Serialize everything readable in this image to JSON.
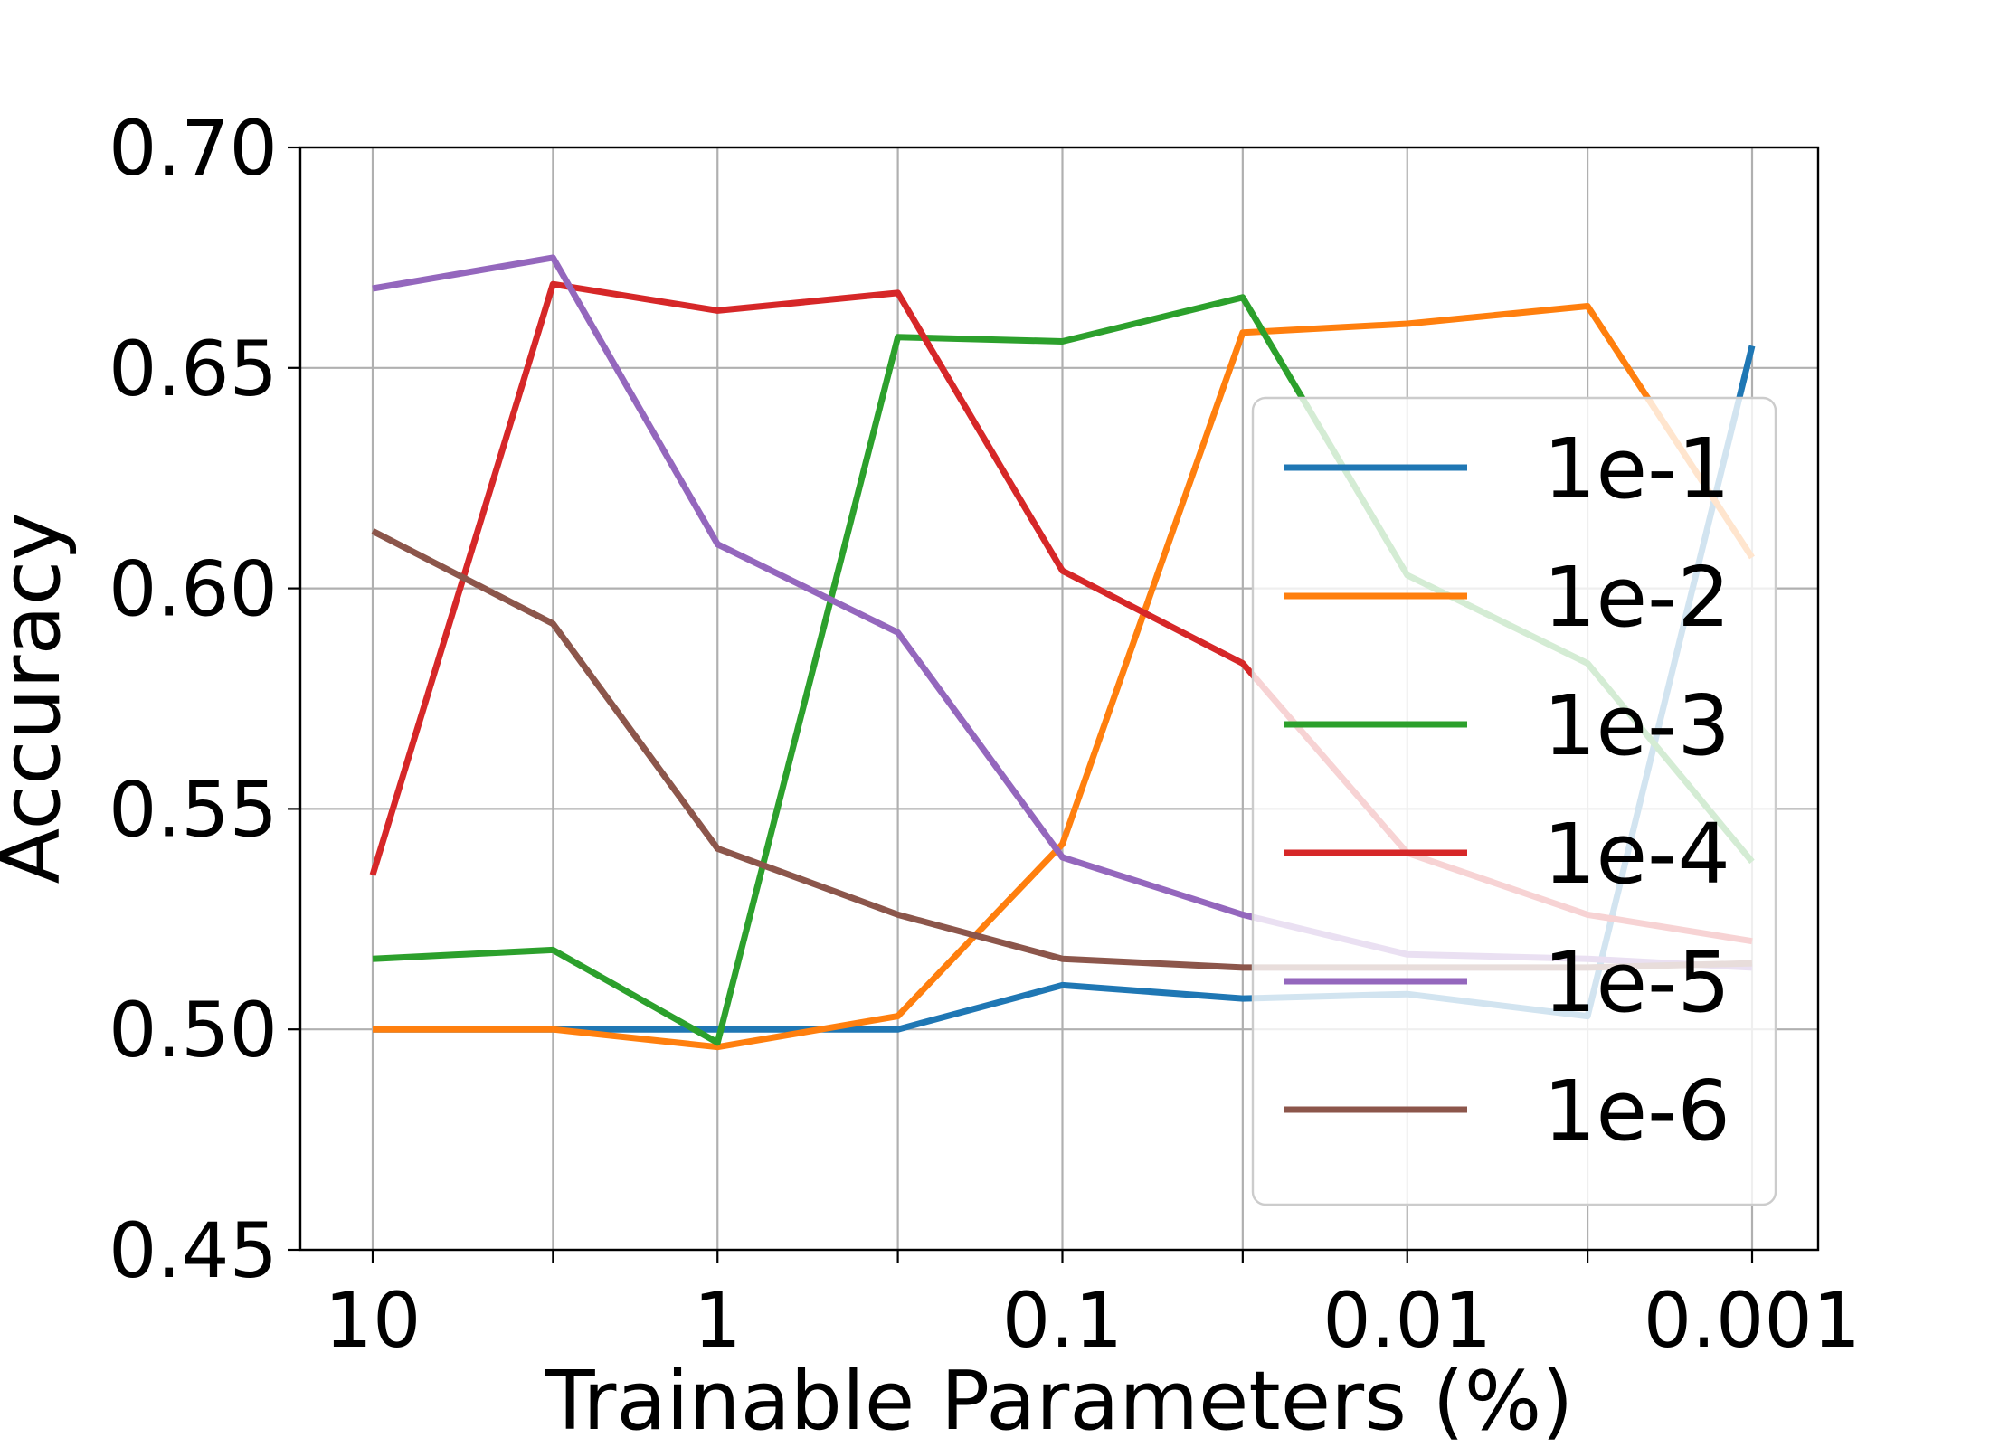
{
  "chart_data": {
    "type": "line",
    "xlabel": "Trainable Parameters (%)",
    "ylabel": "Accuracy",
    "x": [
      10,
      3,
      1,
      0.3,
      0.1,
      0.03,
      0.01,
      0.003,
      0.001
    ],
    "x_scale": "log",
    "x_direction": "decreasing",
    "x_tick_labels": [
      "10",
      "",
      "1",
      "",
      "0.1",
      "",
      "0.01",
      "",
      "0.001"
    ],
    "ylim": [
      0.45,
      0.7
    ],
    "y_ticks": [
      0.45,
      0.5,
      0.55,
      0.6,
      0.65,
      0.7
    ],
    "y_tick_labels": [
      "0.45",
      "0.50",
      "0.55",
      "0.60",
      "0.65",
      "0.70"
    ],
    "grid": true,
    "legend_position": "right",
    "series": [
      {
        "name": "1e-1",
        "color": "#1f77b4",
        "values": [
          0.5,
          0.5,
          0.5,
          0.5,
          0.51,
          0.507,
          0.508,
          0.503,
          0.655
        ]
      },
      {
        "name": "1e-2",
        "color": "#ff7f0e",
        "values": [
          0.5,
          0.5,
          0.496,
          0.503,
          0.542,
          0.658,
          0.66,
          0.664,
          0.607
        ]
      },
      {
        "name": "1e-3",
        "color": "#2ca02c",
        "values": [
          0.516,
          0.518,
          0.497,
          0.657,
          0.656,
          0.666,
          0.603,
          0.583,
          0.538
        ]
      },
      {
        "name": "1e-4",
        "color": "#d62728",
        "values": [
          0.535,
          0.669,
          0.663,
          0.667,
          0.604,
          0.583,
          0.54,
          0.526,
          0.52
        ]
      },
      {
        "name": "1e-5",
        "color": "#9467bd",
        "values": [
          0.668,
          0.675,
          0.61,
          0.59,
          0.539,
          0.526,
          0.517,
          0.516,
          0.514
        ]
      },
      {
        "name": "1e-6",
        "color": "#8c564b",
        "values": [
          0.613,
          0.592,
          0.541,
          0.526,
          0.516,
          0.514,
          0.514,
          0.514,
          0.515
        ]
      }
    ]
  }
}
